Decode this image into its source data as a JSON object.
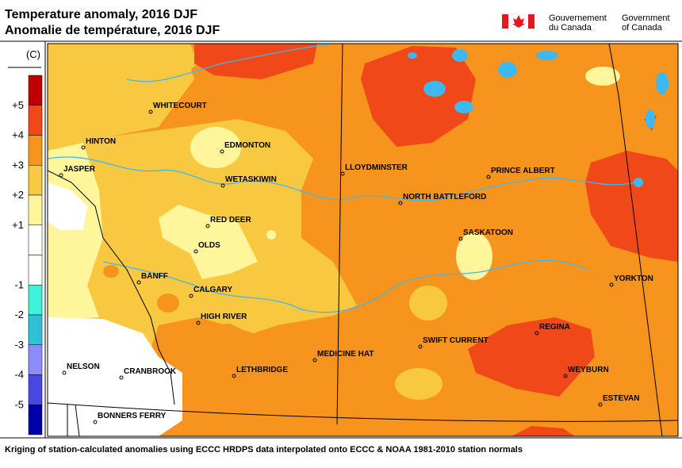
{
  "header": {
    "title_en": "Temperature anomaly, 2016 DJF",
    "title_fr": "Anomalie de température, 2016 DJF",
    "gov_fr": [
      "Gouvernement",
      "du Canada"
    ],
    "gov_en": [
      "Government",
      "of Canada"
    ]
  },
  "legend": {
    "unit": "(C)",
    "colors": [
      "#c00000",
      "#f04818",
      "#f7941d",
      "#f8c840",
      "#fff59a",
      "#ffffff",
      "#ffffff",
      "#40f0d8",
      "#30c0d8",
      "#8c8cff",
      "#4848e0",
      "#0000a8"
    ],
    "labels": [
      "+5",
      "+4",
      "+3",
      "+2",
      "+1",
      "-1",
      "-2",
      "-3",
      "-4",
      "-5"
    ]
  },
  "cities": [
    "WHITECOURT",
    "HINTON",
    "EDMONTON",
    "JASPER",
    "WETASKIWIN",
    "LLOYDMINSTER",
    "PRINCE ALBERT",
    "NORTH BATTLEFORD",
    "RED DEER",
    "SASKATOON",
    "OLDS",
    "BANFF",
    "YORKTON",
    "CALGARY",
    "HIGH RIVER",
    "REGINA",
    "SWIFT CURRENT",
    "MEDICINE HAT",
    "NELSON",
    "CRANBROOK",
    "LETHBRIDGE",
    "WEYBURN",
    "ESTEVAN",
    "BONNERS FERRY"
  ],
  "footer": "Kriging of station-calculated anomalies using ECCC HRDPS data interpolated onto ECCC & NOAA 1981-2010 station normals"
}
